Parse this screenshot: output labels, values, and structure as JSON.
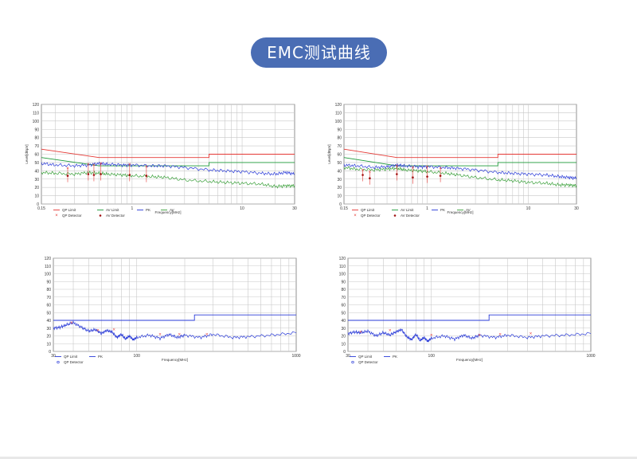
{
  "page": {
    "title": "EMC测试曲线"
  },
  "colors": {
    "qp_limit": "#e53935",
    "av_limit": "#1e9b3a",
    "pk": "#2a3bd8",
    "av": "#3aa03a",
    "grid": "#c8c8c8",
    "marker": "#e53935",
    "detector_blue": "#2a3bd8"
  },
  "chart_data": [
    {
      "type": "line",
      "id": "conducted-1",
      "xscale": "log",
      "xlim": [
        0.15,
        30
      ],
      "ylim": [
        0,
        120
      ],
      "xlabel": "Frequency[MHz]",
      "ylabel": "Level[dBμV]",
      "yticks": [
        0,
        10,
        20,
        30,
        40,
        50,
        60,
        70,
        80,
        90,
        100,
        110,
        120
      ],
      "xtick_labels": [
        {
          "v": 0.15,
          "t": "0.15"
        },
        {
          "v": 1,
          "t": "1"
        },
        {
          "v": 10,
          "t": "10"
        },
        {
          "v": 30,
          "t": "30"
        }
      ],
      "legend": [
        {
          "label": "QP Limit",
          "kind": "line",
          "color": "#e53935"
        },
        {
          "label": "AV Limit",
          "kind": "line",
          "color": "#1e9b3a"
        },
        {
          "label": "PK",
          "kind": "line",
          "color": "#2a3bd8"
        },
        {
          "label": "AV",
          "kind": "line",
          "color": "#3aa03a"
        },
        {
          "label": "QP Detector",
          "kind": "x",
          "color": "#e53935"
        },
        {
          "label": "AV Detector",
          "kind": "dot",
          "color": "#a01010"
        }
      ],
      "series": [
        {
          "name": "QP Limit",
          "color": "#e53935",
          "x": [
            0.15,
            0.5,
            0.5,
            5,
            5,
            30
          ],
          "y": [
            66,
            56,
            56,
            56,
            60,
            60
          ]
        },
        {
          "name": "AV Limit",
          "color": "#1e9b3a",
          "x": [
            0.15,
            0.5,
            0.5,
            5,
            5,
            30
          ],
          "y": [
            56,
            46,
            46,
            46,
            50,
            50
          ]
        },
        {
          "name": "PK",
          "color": "#2a3bd8",
          "x": [
            0.15,
            0.2,
            0.3,
            0.4,
            0.5,
            0.6,
            0.8,
            1,
            1.5,
            2,
            3,
            5,
            7,
            10,
            15,
            20,
            25,
            30
          ],
          "y": [
            49,
            47,
            46,
            47,
            49,
            48,
            47,
            47,
            46,
            46,
            44,
            41,
            40,
            39,
            37,
            36,
            38,
            36
          ]
        },
        {
          "name": "AV",
          "color": "#3aa03a",
          "x": [
            0.15,
            0.2,
            0.3,
            0.4,
            0.5,
            0.6,
            0.8,
            1,
            1.5,
            2,
            3,
            5,
            7,
            10,
            15,
            20,
            25,
            30
          ],
          "y": [
            38,
            37,
            36,
            38,
            37,
            36,
            35,
            34,
            33,
            32,
            29,
            27,
            26,
            25,
            24,
            21,
            22,
            22
          ]
        }
      ],
      "markers": [
        {
          "x": 0.26,
          "qp": 43,
          "av": 34
        },
        {
          "x": 0.4,
          "qp": 48,
          "av": 36
        },
        {
          "x": 0.45,
          "qp": 47,
          "av": 35
        },
        {
          "x": 0.52,
          "qp": 49,
          "av": 36
        },
        {
          "x": 0.95,
          "qp": 48,
          "av": 35
        },
        {
          "x": 1.35,
          "qp": 45,
          "av": 34
        }
      ]
    },
    {
      "type": "line",
      "id": "conducted-2",
      "xscale": "log",
      "xlim": [
        0.15,
        30
      ],
      "ylim": [
        0,
        120
      ],
      "xlabel": "Frequency[MHz]",
      "ylabel": "Level[dBμV]",
      "yticks": [
        0,
        10,
        20,
        30,
        40,
        50,
        60,
        70,
        80,
        90,
        100,
        110,
        120
      ],
      "xtick_labels": [
        {
          "v": 0.15,
          "t": "0.15"
        },
        {
          "v": 1,
          "t": "1"
        },
        {
          "v": 10,
          "t": "10"
        },
        {
          "v": 30,
          "t": "30"
        }
      ],
      "legend": [
        {
          "label": "QP Limit",
          "kind": "line",
          "color": "#e53935"
        },
        {
          "label": "AV Limit",
          "kind": "line",
          "color": "#1e9b3a"
        },
        {
          "label": "PK",
          "kind": "line",
          "color": "#2a3bd8"
        },
        {
          "label": "AV",
          "kind": "line",
          "color": "#3aa03a"
        },
        {
          "label": "QP Detector",
          "kind": "x",
          "color": "#e53935"
        },
        {
          "label": "AV Detector",
          "kind": "dot",
          "color": "#a01010"
        }
      ],
      "series": [
        {
          "name": "QP Limit",
          "color": "#e53935",
          "x": [
            0.15,
            0.5,
            0.5,
            5,
            5,
            30
          ],
          "y": [
            66,
            56,
            56,
            56,
            60,
            60
          ]
        },
        {
          "name": "AV Limit",
          "color": "#1e9b3a",
          "x": [
            0.15,
            0.5,
            0.5,
            5,
            5,
            30
          ],
          "y": [
            56,
            46,
            46,
            46,
            50,
            50
          ]
        },
        {
          "name": "PK",
          "color": "#2a3bd8",
          "x": [
            0.15,
            0.2,
            0.3,
            0.4,
            0.5,
            0.6,
            0.8,
            1,
            1.5,
            2,
            3,
            5,
            7,
            10,
            15,
            20,
            25,
            30
          ],
          "y": [
            47,
            46,
            44,
            45,
            47,
            46,
            45,
            45,
            44,
            43,
            41,
            38,
            37,
            36,
            35,
            33,
            32,
            31
          ]
        },
        {
          "name": "AV",
          "color": "#3aa03a",
          "x": [
            0.15,
            0.2,
            0.3,
            0.4,
            0.5,
            0.6,
            0.8,
            1,
            1.5,
            2,
            3,
            5,
            7,
            10,
            15,
            20,
            25,
            30
          ],
          "y": [
            44,
            42,
            41,
            42,
            43,
            41,
            40,
            39,
            37,
            35,
            32,
            29,
            28,
            26,
            25,
            23,
            23,
            22
          ]
        }
      ],
      "markers": [
        {
          "x": 0.23,
          "qp": 41,
          "av": 35
        },
        {
          "x": 0.27,
          "qp": 39,
          "av": 31
        },
        {
          "x": 0.5,
          "qp": 46,
          "av": 36
        },
        {
          "x": 0.72,
          "qp": 44,
          "av": 32
        },
        {
          "x": 1.0,
          "qp": 45,
          "av": 33
        },
        {
          "x": 1.35,
          "qp": 43,
          "av": 34
        }
      ]
    },
    {
      "type": "line",
      "id": "radiated-1",
      "xscale": "log",
      "xlim": [
        30,
        1000
      ],
      "ylim": [
        0,
        120
      ],
      "xlabel": "Frequency[MHz]",
      "ylabel": "",
      "yticks": [
        0,
        10,
        20,
        30,
        40,
        50,
        60,
        70,
        80,
        90,
        100,
        110,
        120
      ],
      "xtick_labels": [
        {
          "v": 30,
          "t": "30"
        },
        {
          "v": 100,
          "t": "100"
        },
        {
          "v": 1000,
          "t": "1000"
        }
      ],
      "legend": [
        {
          "label": "QP Limit",
          "kind": "line",
          "color": "#2a3bd8"
        },
        {
          "label": "PK",
          "kind": "line",
          "color": "#2a3bd8"
        },
        {
          "label": "QP Detector",
          "kind": "o",
          "color": "#2a3bd8"
        }
      ],
      "series": [
        {
          "name": "QP Limit",
          "color": "#2a3bd8",
          "x": [
            30,
            230,
            230,
            1000
          ],
          "y": [
            40,
            40,
            47,
            47
          ]
        },
        {
          "name": "PK",
          "color": "#2a3bd8",
          "x": [
            30,
            33,
            36,
            40,
            45,
            50,
            55,
            60,
            65,
            70,
            75,
            80,
            85,
            90,
            95,
            100,
            120,
            140,
            160,
            180,
            200,
            250,
            300,
            400,
            500,
            700,
            1000
          ],
          "y": [
            30,
            31,
            34,
            37,
            31,
            26,
            28,
            23,
            27,
            25,
            18,
            22,
            16,
            20,
            15,
            18,
            21,
            17,
            22,
            18,
            21,
            18,
            22,
            18,
            19,
            21,
            24
          ]
        }
      ],
      "markers": [
        {
          "x": 39,
          "qp": 37
        },
        {
          "x": 57,
          "qp": 27
        },
        {
          "x": 72,
          "qp": 28
        },
        {
          "x": 140,
          "qp": 22
        },
        {
          "x": 185,
          "qp": 22
        },
        {
          "x": 275,
          "qp": 22
        }
      ]
    },
    {
      "type": "line",
      "id": "radiated-2",
      "xscale": "log",
      "xlim": [
        30,
        1000
      ],
      "ylim": [
        0,
        120
      ],
      "xlabel": "Frequency[MHz]",
      "ylabel": "",
      "yticks": [
        0,
        10,
        20,
        30,
        40,
        50,
        60,
        70,
        80,
        90,
        100,
        110,
        120
      ],
      "xtick_labels": [
        {
          "v": 30,
          "t": "30"
        },
        {
          "v": 100,
          "t": "100"
        },
        {
          "v": 1000,
          "t": "1000"
        }
      ],
      "legend": [
        {
          "label": "QP Limit",
          "kind": "line",
          "color": "#2a3bd8"
        },
        {
          "label": "PK",
          "kind": "line",
          "color": "#2a3bd8"
        },
        {
          "label": "QP Detector",
          "kind": "o",
          "color": "#2a3bd8"
        }
      ],
      "series": [
        {
          "name": "QP Limit",
          "color": "#2a3bd8",
          "x": [
            30,
            230,
            230,
            1000
          ],
          "y": [
            40,
            40,
            47,
            47
          ]
        },
        {
          "name": "PK",
          "color": "#2a3bd8",
          "x": [
            30,
            33,
            36,
            40,
            45,
            50,
            55,
            60,
            65,
            70,
            75,
            80,
            85,
            90,
            95,
            100,
            120,
            140,
            160,
            180,
            200,
            250,
            300,
            400,
            500,
            700,
            1000
          ],
          "y": [
            23,
            25,
            24,
            26,
            20,
            24,
            21,
            25,
            28,
            19,
            15,
            22,
            14,
            18,
            13,
            17,
            20,
            16,
            21,
            17,
            21,
            18,
            21,
            18,
            20,
            21,
            23
          ]
        }
      ],
      "markers": [
        {
          "x": 36,
          "qp": 25
        },
        {
          "x": 55,
          "qp": 27
        },
        {
          "x": 100,
          "qp": 21
        },
        {
          "x": 200,
          "qp": 21
        },
        {
          "x": 270,
          "qp": 22
        },
        {
          "x": 420,
          "qp": 23
        }
      ]
    }
  ]
}
